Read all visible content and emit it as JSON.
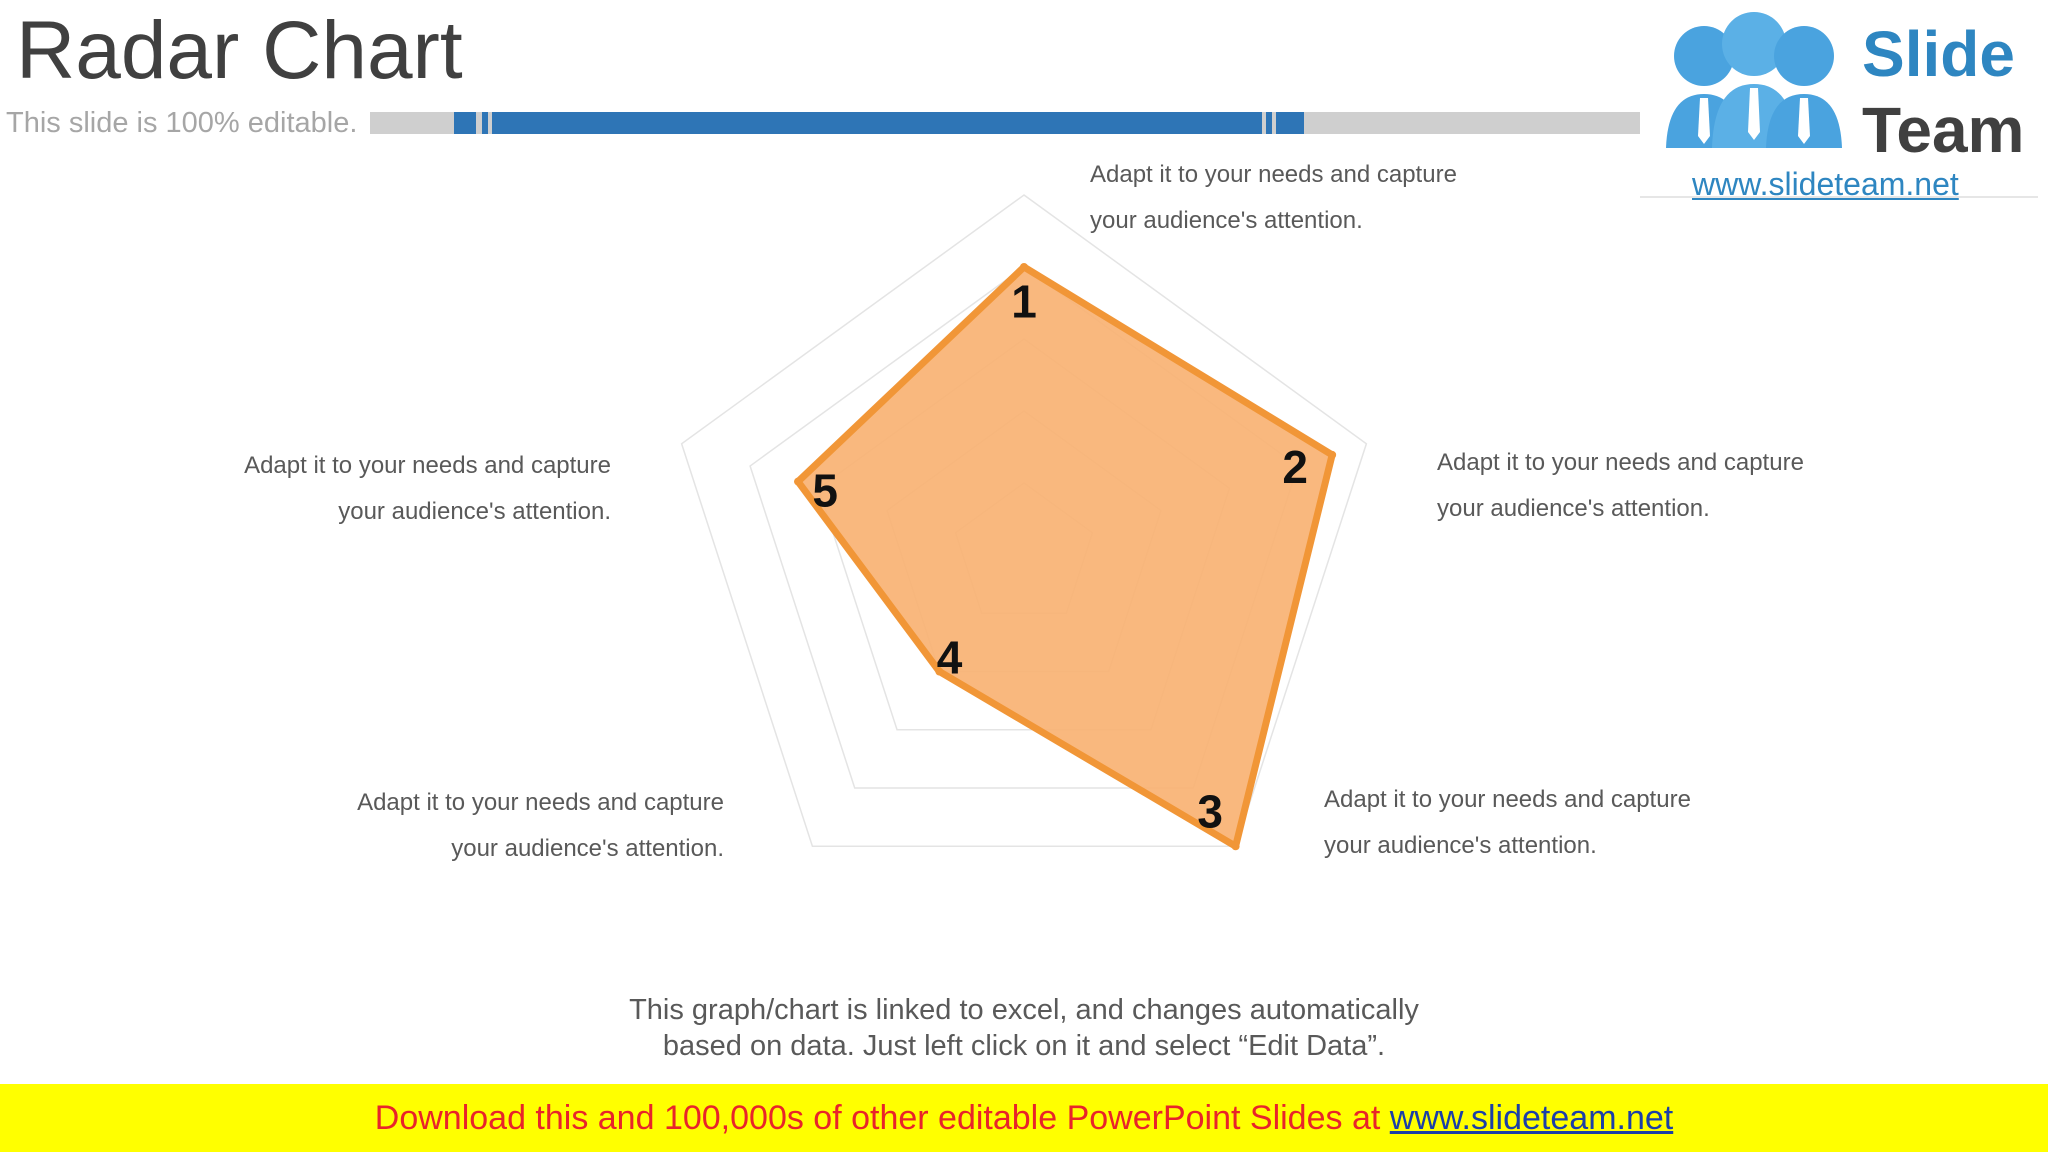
{
  "slide": {
    "title": "Radar Chart",
    "subtitle": "This slide is 100% editable."
  },
  "logo": {
    "word1": "Slide",
    "word2": "Team",
    "url": "www.slideteam.net"
  },
  "labels": [
    {
      "line1": "Adapt it to your needs and capture",
      "line2": "your audience's attention."
    },
    {
      "line1": "Adapt it to your needs and capture",
      "line2": "your audience's attention."
    },
    {
      "line1": "Adapt it to your needs and capture",
      "line2": "your audience's attention."
    },
    {
      "line1": "Adapt it to your needs and capture",
      "line2": "your audience's attention."
    },
    {
      "line1": "Adapt it to your needs and capture",
      "line2": "your audience's attention."
    }
  ],
  "note": {
    "line1": "This graph/chart is linked to excel, and changes automatically",
    "line2": "based on data. Just left click on it and select “Edit Data”."
  },
  "footer": {
    "text": "Download this and 100,000s of other editable PowerPoint Slides at ",
    "link": "www.slideteam.net"
  },
  "colors": {
    "fill": "#f8b273",
    "stroke": "#f19637",
    "grid": "#e4e4e4",
    "accent_blue": "#2e75b6",
    "bar_gray": "#cfcfcf"
  },
  "chart_data": {
    "type": "radar",
    "categories": [
      "1",
      "2",
      "3",
      "4",
      "5"
    ],
    "values": [
      4.0,
      4.5,
      5.0,
      2.0,
      3.3
    ],
    "rmax": 5,
    "grid_levels": 5,
    "grid": true,
    "legend": "none"
  }
}
